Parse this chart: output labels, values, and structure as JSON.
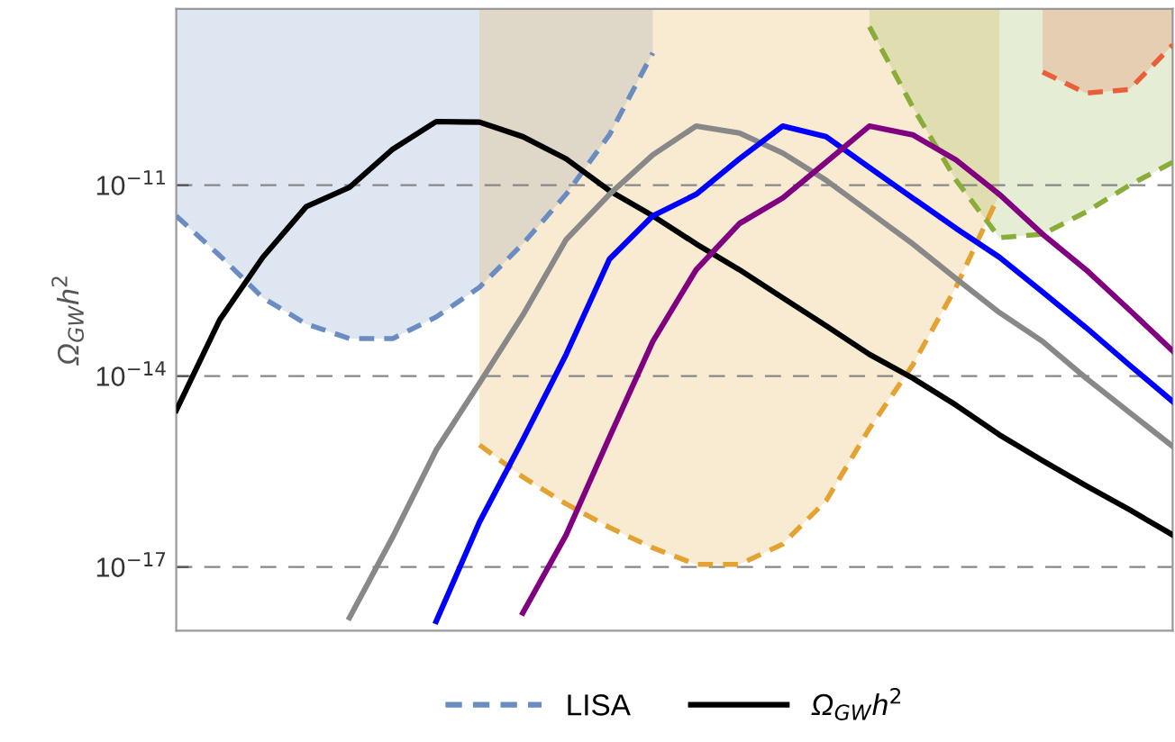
{
  "chart_data": {
    "type": "line",
    "ylabel": "Ω$_{GW}$h$^{2}$",
    "log": "y",
    "categories": [
      null,
      null,
      null,
      null,
      null,
      null,
      null,
      null,
      null,
      null,
      null,
      null,
      null,
      null,
      null,
      null,
      null,
      null,
      null,
      null,
      null,
      null,
      null,
      null
    ],
    "ylim": [
      1e-18,
      5.9e-09
    ],
    "yticks": [
      {
        "value": 1e-17,
        "label": "10$^{−17}$"
      },
      {
        "value": 1e-14,
        "label": "10$^{−14}$"
      },
      {
        "value": 1e-11,
        "label": "10$^{−11}$"
      }
    ],
    "grid": "y",
    "legend": "bottom",
    "series": [
      {
        "name": "LISA",
        "line_style": "dashed",
        "color": "#6b8cc0",
        "values": [
          3.3e-12,
          7.9e-13,
          1.7e-13,
          6.6e-14,
          3.9e-14,
          3.9e-14,
          8.5e-14,
          2.5e-13,
          1.2e-12,
          7.2e-12,
          6.2e-11,
          1.2e-09,
          null,
          null,
          null,
          null,
          null,
          null,
          null,
          null,
          null,
          null,
          null,
          null
        ]
      },
      {
        "line_style": "dashed",
        "color": "#e3a232",
        "values": [
          null,
          null,
          null,
          null,
          null,
          null,
          null,
          8.3e-16,
          2.6e-16,
          9.8e-17,
          4.2e-17,
          2e-17,
          1.1e-17,
          1.1e-17,
          2.3e-17,
          1.1e-16,
          1.5e-15,
          1.5e-14,
          2.5e-13,
          7.2e-12,
          null,
          null,
          null,
          null
        ]
      },
      {
        "line_style": "dashed",
        "color": "#8aad3a",
        "values": [
          null,
          null,
          null,
          null,
          null,
          null,
          null,
          null,
          null,
          null,
          null,
          null,
          null,
          null,
          null,
          null,
          3.1e-09,
          1.7e-10,
          1.2e-11,
          1.5e-12,
          1.7e-12,
          3.8e-12,
          1e-11,
          2.3e-11
        ]
      },
      {
        "line_style": "dashed",
        "color": "#e8603a",
        "values": [
          null,
          null,
          null,
          null,
          null,
          null,
          null,
          null,
          null,
          null,
          null,
          null,
          null,
          null,
          null,
          null,
          null,
          null,
          null,
          null,
          6e-10,
          2.8e-10,
          3.2e-10,
          1.6e-09
        ]
      },
      {
        "name": "Ω$_{GW}$h$^{2}$",
        "color": "#000000",
        "line_style": "solid",
        "values": [
          2.9e-15,
          7.6e-14,
          7.4e-13,
          4.6e-12,
          9.3e-12,
          3.7e-11,
          1e-10,
          9.8e-11,
          5.8e-11,
          2.6e-11,
          8.2e-12,
          3.3e-12,
          1.2e-12,
          4.7e-13,
          1.7e-13,
          6.2e-14,
          2.2e-14,
          9.3e-15,
          3.5e-15,
          1.2e-15,
          4.7e-16,
          1.9e-16,
          8e-17,
          3.2e-17
        ]
      },
      {
        "color": "#888888",
        "line_style": "solid",
        "values": [
          null,
          null,
          null,
          null,
          1.6e-18,
          3e-17,
          6.9e-16,
          7.8e-15,
          9.1e-14,
          1.4e-12,
          7.2e-12,
          3e-11,
          8.5e-11,
          6.6e-11,
          3.2e-11,
          1.2e-11,
          3.8e-12,
          1.2e-12,
          3.4e-13,
          1e-13,
          3.5e-14,
          9.3e-15,
          2.7e-15,
          7.9e-16
        ]
      },
      {
        "color": "#0000ff",
        "line_style": "solid",
        "values": [
          null,
          null,
          null,
          null,
          null,
          null,
          1.4e-18,
          5.1e-17,
          1e-15,
          2.2e-14,
          6.9e-13,
          3.3e-12,
          7.2e-12,
          2.6e-11,
          8.5e-11,
          5.8e-11,
          1.9e-11,
          6.3e-12,
          2.1e-12,
          7.4e-13,
          2.1e-13,
          5.8e-14,
          1.5e-14,
          4e-15
        ]
      },
      {
        "color": "#800080",
        "line_style": "solid",
        "values": [
          null,
          null,
          null,
          null,
          null,
          null,
          null,
          null,
          1.9e-18,
          3.2e-17,
          1.1e-15,
          3.5e-14,
          4.7e-13,
          2.5e-12,
          6.3e-12,
          2.3e-11,
          8.5e-11,
          6.2e-11,
          2.5e-11,
          7.2e-12,
          1.7e-12,
          4.7e-13,
          1.1e-13,
          2.5e-14
        ]
      }
    ]
  }
}
